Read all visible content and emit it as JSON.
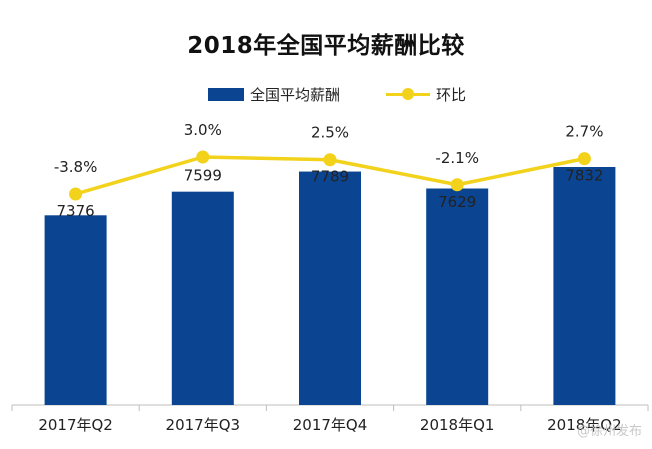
{
  "chart_data": {
    "type": "bar",
    "title": "2018年全国平均薪酬比较",
    "categories": [
      "2017年Q2",
      "2017年Q3",
      "2017年Q4",
      "2018年Q1",
      "2018年Q2"
    ],
    "series": [
      {
        "name": "全国平均薪酬",
        "type": "bar",
        "values": [
          7376,
          7599,
          7789,
          7629,
          7832
        ],
        "color": "#0b4592"
      },
      {
        "name": "环比",
        "type": "line",
        "values": [
          -3.8,
          3.0,
          2.5,
          -2.1,
          2.7
        ],
        "labels": [
          "-3.8%",
          "3.0%",
          "2.5%",
          "-2.1%",
          "2.7%"
        ],
        "color": "#f2d21a"
      }
    ],
    "bar_labels": [
      "7376",
      "7599",
      "7789",
      "7629",
      "7832"
    ],
    "legend_position": "top",
    "grid": false
  },
  "watermark": "@徐州发布"
}
